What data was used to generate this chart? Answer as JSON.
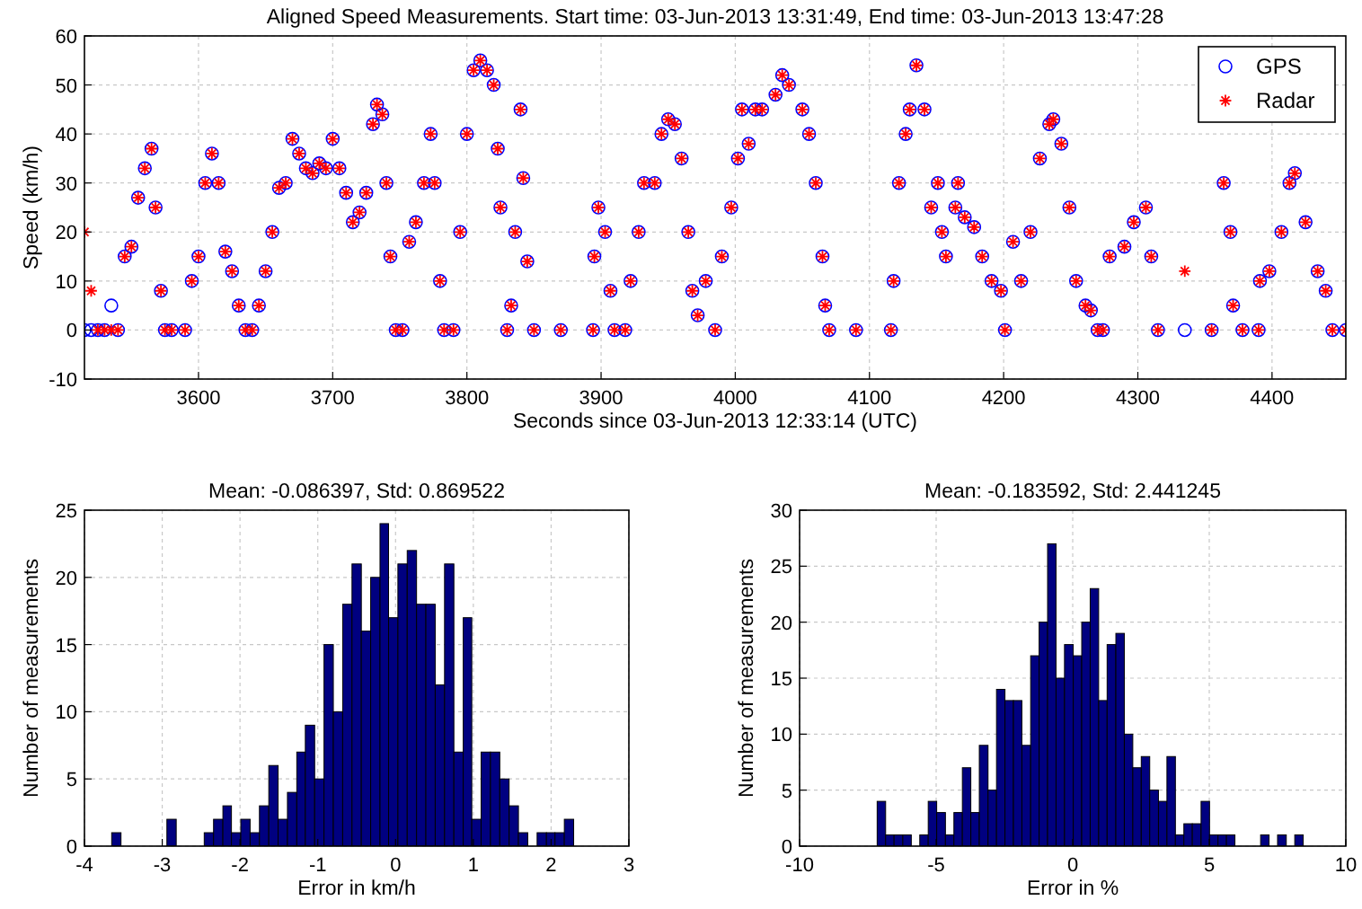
{
  "chart_data": [
    {
      "type": "scatter",
      "title": "Aligned Speed Measurements. Start time: 03-Jun-2013 13:31:49, End time: 03-Jun-2013 13:47:28",
      "xlabel": "Seconds since 03-Jun-2013 12:33:14 (UTC)",
      "ylabel": "Speed (km/h)",
      "xlim": [
        3515,
        4455
      ],
      "ylim": [
        -10,
        60
      ],
      "xticks": [
        3600,
        3700,
        3800,
        3900,
        4000,
        4100,
        4200,
        4300,
        4400
      ],
      "yticks": [
        -10,
        0,
        10,
        20,
        30,
        40,
        50,
        60
      ],
      "grid": true,
      "legend": "top right",
      "series": [
        {
          "name": "GPS",
          "color": "#0000ff",
          "marker": "circle",
          "x": [
            3515,
            3520,
            3525,
            3530,
            3535,
            3540,
            3545,
            3550,
            3555,
            3560,
            3565,
            3568,
            3572,
            3575,
            3580,
            3590,
            3595,
            3600,
            3605,
            3610,
            3615,
            3620,
            3625,
            3630,
            3635,
            3640,
            3645,
            3650,
            3655,
            3660,
            3665,
            3670,
            3675,
            3680,
            3685,
            3690,
            3695,
            3700,
            3705,
            3710,
            3715,
            3720,
            3725,
            3730,
            3733,
            3737,
            3740,
            3743,
            3747,
            3752,
            3757,
            3762,
            3768,
            3773,
            3776,
            3780,
            3783,
            3790,
            3795,
            3800,
            3805,
            3810,
            3815,
            3820,
            3823,
            3825,
            3830,
            3833,
            3836,
            3840,
            3842,
            3845,
            3850,
            3870,
            3894,
            3895,
            3898,
            3903,
            3907,
            3910,
            3918,
            3922,
            3928,
            3932,
            3940,
            3945,
            3950,
            3955,
            3960,
            3965,
            3968,
            3972,
            3978,
            3985,
            3990,
            3997,
            4002,
            4005,
            4010,
            4015,
            4020,
            4030,
            4035,
            4040,
            4050,
            4055,
            4060,
            4065,
            4067,
            4070,
            4090,
            4116,
            4118,
            4122,
            4127,
            4130,
            4135,
            4141,
            4146,
            4151,
            4154,
            4157,
            4164,
            4166,
            4171,
            4178,
            4184,
            4191,
            4198,
            4201,
            4207,
            4213,
            4220,
            4227,
            4234,
            4237,
            4243,
            4249,
            4254,
            4261,
            4265,
            4270,
            4274,
            4279,
            4290,
            4297,
            4306,
            4310,
            4315,
            4335,
            4355,
            4364,
            4369,
            4371,
            4378,
            4390,
            4391,
            4398,
            4407,
            4413,
            4417,
            4425,
            4434,
            4440,
            4445,
            4455
          ],
          "values": [
            0,
            0,
            0,
            0,
            5,
            0,
            15,
            17,
            27,
            33,
            37,
            25,
            8,
            0,
            0,
            0,
            10,
            15,
            30,
            36,
            30,
            16,
            12,
            5,
            0,
            0,
            5,
            12,
            20,
            29,
            30,
            39,
            36,
            33,
            32,
            34,
            33,
            39,
            33,
            28,
            22,
            24,
            28,
            42,
            46,
            44,
            30,
            15,
            0,
            0,
            18,
            22,
            30,
            40,
            30,
            10,
            0,
            0,
            20,
            40,
            53,
            55,
            53,
            50,
            37,
            25,
            0,
            5,
            20,
            45,
            31,
            14,
            0,
            0,
            0,
            15,
            25,
            20,
            8,
            0,
            0,
            10,
            20,
            30,
            30,
            40,
            43,
            42,
            35,
            20,
            8,
            3,
            10,
            0,
            15,
            25,
            35,
            45,
            38,
            45,
            45,
            48,
            52,
            50,
            45,
            40,
            30,
            15,
            5,
            0,
            0,
            0,
            10,
            30,
            40,
            45,
            54,
            45,
            25,
            30,
            20,
            15,
            25,
            30,
            23,
            21,
            15,
            10,
            8,
            0,
            18,
            10,
            20,
            35,
            42,
            43,
            38,
            25,
            10,
            5,
            4,
            0,
            0,
            15,
            17,
            22,
            25,
            15,
            0,
            0,
            0,
            30,
            20,
            5,
            0,
            0,
            10,
            12,
            20,
            30,
            32,
            22,
            12,
            8,
            0,
            0
          ]
        },
        {
          "name": "Radar",
          "color": "#ff0000",
          "marker": "cross",
          "x": [
            3515,
            3520,
            3525,
            3530,
            3535,
            3540,
            3545,
            3550,
            3555,
            3560,
            3565,
            3568,
            3572,
            3575,
            3580,
            3590,
            3595,
            3600,
            3605,
            3610,
            3615,
            3620,
            3625,
            3630,
            3635,
            3640,
            3645,
            3650,
            3655,
            3660,
            3665,
            3670,
            3675,
            3680,
            3685,
            3690,
            3695,
            3700,
            3705,
            3710,
            3715,
            3720,
            3725,
            3730,
            3733,
            3737,
            3740,
            3743,
            3747,
            3752,
            3757,
            3762,
            3768,
            3773,
            3776,
            3780,
            3783,
            3790,
            3795,
            3800,
            3805,
            3810,
            3815,
            3820,
            3823,
            3825,
            3830,
            3833,
            3836,
            3840,
            3842,
            3845,
            3850,
            3870,
            3894,
            3895,
            3898,
            3903,
            3907,
            3910,
            3918,
            3922,
            3928,
            3932,
            3940,
            3945,
            3950,
            3955,
            3960,
            3965,
            3968,
            3972,
            3978,
            3985,
            3990,
            3997,
            4002,
            4005,
            4010,
            4015,
            4020,
            4030,
            4035,
            4040,
            4050,
            4055,
            4060,
            4065,
            4067,
            4070,
            4090,
            4116,
            4118,
            4122,
            4127,
            4130,
            4135,
            4141,
            4146,
            4151,
            4154,
            4157,
            4164,
            4166,
            4171,
            4178,
            4184,
            4191,
            4198,
            4201,
            4207,
            4213,
            4220,
            4227,
            4234,
            4237,
            4243,
            4249,
            4254,
            4261,
            4265,
            4270,
            4274,
            4279,
            4290,
            4297,
            4306,
            4310,
            4315,
            4335,
            4355,
            4364,
            4369,
            4371,
            4378,
            4390,
            4391,
            4398,
            4407,
            4413,
            4417,
            4425,
            4434,
            4440,
            4445,
            4455
          ],
          "values": [
            20,
            8,
            0,
            0,
            0,
            0,
            15,
            17,
            27,
            33,
            37,
            25,
            8,
            0,
            0,
            0,
            10,
            15,
            30,
            36,
            30,
            16,
            12,
            5,
            0,
            0,
            5,
            12,
            20,
            29,
            30,
            39,
            36,
            33,
            32,
            34,
            33,
            39,
            33,
            28,
            22,
            24,
            28,
            42,
            46,
            44,
            30,
            15,
            0,
            0,
            18,
            22,
            30,
            40,
            30,
            10,
            0,
            0,
            20,
            40,
            53,
            55,
            53,
            50,
            37,
            25,
            0,
            5,
            20,
            45,
            31,
            14,
            0,
            0,
            0,
            15,
            25,
            20,
            8,
            0,
            0,
            10,
            20,
            30,
            30,
            40,
            43,
            42,
            35,
            20,
            8,
            3,
            10,
            0,
            15,
            25,
            35,
            45,
            38,
            45,
            45,
            48,
            52,
            50,
            45,
            40,
            30,
            15,
            5,
            0,
            0,
            0,
            10,
            30,
            40,
            45,
            54,
            45,
            25,
            30,
            20,
            15,
            25,
            30,
            23,
            21,
            15,
            10,
            8,
            0,
            18,
            10,
            20,
            35,
            42,
            43,
            38,
            25,
            10,
            5,
            4,
            0,
            0,
            15,
            17,
            22,
            25,
            15,
            0,
            12,
            0,
            30,
            20,
            5,
            0,
            0,
            10,
            12,
            20,
            30,
            32,
            22,
            12,
            8,
            0,
            0
          ]
        }
      ]
    },
    {
      "type": "histogram",
      "title": "Mean: -0.086397, Std: 0.869522",
      "xlabel": "Error in km/h",
      "ylabel": "Number of measurements",
      "color": "#000080",
      "xlim": [
        -4,
        3
      ],
      "ylim": [
        0,
        25
      ],
      "xticks": [
        -4,
        -3,
        -2,
        -1,
        0,
        1,
        2,
        3
      ],
      "yticks": [
        0,
        5,
        10,
        15,
        20,
        25
      ],
      "grid": true,
      "bins": [
        -3.65,
        -3.53,
        -2.94,
        -2.82,
        -2.46,
        -2.34,
        -2.22,
        -2.11,
        -1.99,
        -1.87,
        -1.75,
        -1.63,
        -1.51,
        -1.39,
        -1.27,
        -1.16,
        -1.04,
        -0.92,
        -0.8,
        -0.68,
        -0.56,
        -0.44,
        -0.32,
        -0.2,
        -0.09,
        0.03,
        0.15,
        0.27,
        0.39,
        0.51,
        0.63,
        0.75,
        0.87,
        0.98,
        1.1,
        1.22,
        1.34,
        1.46,
        1.58,
        1.7,
        1.82,
        1.94,
        2.05,
        2.17,
        2.29
      ],
      "values": [
        1,
        0,
        2,
        0,
        1,
        2,
        3,
        1,
        2,
        1,
        3,
        6,
        2,
        4,
        7,
        9,
        5,
        15,
        10,
        18,
        21,
        16,
        20,
        24,
        17,
        21,
        22,
        18,
        18,
        12,
        21,
        7,
        17,
        2,
        7,
        7,
        5,
        3,
        1,
        0,
        1,
        1,
        1,
        2
      ]
    },
    {
      "type": "histogram",
      "title": "Mean: -0.183592, Std: 2.441245",
      "xlabel": "Error in %",
      "ylabel": "Number of measurements",
      "color": "#000080",
      "xlim": [
        -10,
        10
      ],
      "ylim": [
        0,
        30
      ],
      "xticks": [
        -10,
        -5,
        0,
        5,
        10
      ],
      "yticks": [
        0,
        5,
        10,
        15,
        20,
        25,
        30
      ],
      "grid": true,
      "bins": [
        -7.16,
        -6.85,
        -6.54,
        -6.22,
        -5.91,
        -5.6,
        -5.29,
        -4.98,
        -4.66,
        -4.35,
        -4.04,
        -3.73,
        -3.42,
        -3.1,
        -2.79,
        -2.48,
        -2.17,
        -1.86,
        -1.54,
        -1.23,
        -0.92,
        -0.61,
        -0.3,
        0.02,
        0.33,
        0.64,
        0.95,
        1.26,
        1.58,
        1.89,
        2.2,
        2.51,
        2.82,
        3.14,
        3.45,
        3.76,
        4.07,
        4.38,
        4.7,
        5.01,
        5.32,
        5.63,
        5.94,
        6.88,
        7.19,
        7.5,
        7.82,
        8.13,
        8.44
      ],
      "values": [
        4,
        1,
        1,
        1,
        0,
        1,
        4,
        3,
        1,
        3,
        7,
        3,
        9,
        5,
        14,
        13,
        13,
        9,
        17,
        20,
        27,
        15,
        18,
        17,
        20,
        23,
        13,
        18,
        19,
        10,
        7,
        8,
        5,
        4,
        8,
        1,
        2,
        2,
        4,
        1,
        1,
        1,
        0,
        1,
        0,
        1,
        0,
        1
      ]
    }
  ]
}
